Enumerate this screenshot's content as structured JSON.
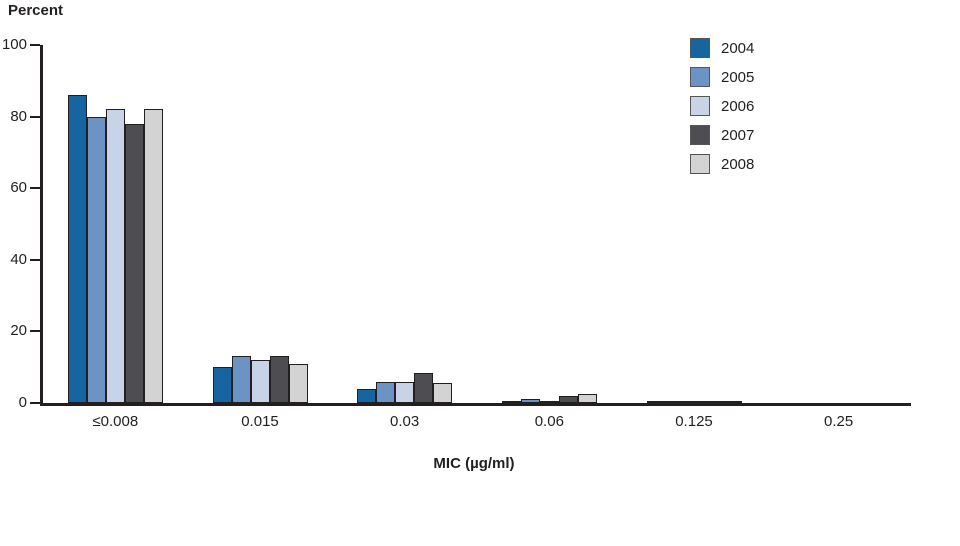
{
  "chart_data": {
    "type": "bar",
    "title": "Percent",
    "xlabel": "MIC (µg/ml)",
    "ylabel": "",
    "ylim": [
      0,
      100
    ],
    "yticks": [
      0,
      20,
      40,
      60,
      80,
      100
    ],
    "grid": false,
    "legend_position": "top-right",
    "categories": [
      "≤0.008",
      "0.015",
      "0.03",
      "0.06",
      "0.125",
      "0.25"
    ],
    "series": [
      {
        "name": "2004",
        "color": "#1665a0",
        "values": [
          86,
          10,
          4,
          0.5,
          0.1,
          0
        ]
      },
      {
        "name": "2005",
        "color": "#6d92c4",
        "values": [
          80,
          13,
          6,
          1,
          0.2,
          0
        ]
      },
      {
        "name": "2006",
        "color": "#c8d3e7",
        "values": [
          82,
          12,
          6,
          0.5,
          0.1,
          0
        ]
      },
      {
        "name": "2007",
        "color": "#4d4d52",
        "values": [
          78,
          13,
          8.5,
          2,
          0.3,
          0
        ]
      },
      {
        "name": "2008",
        "color": "#d3d3d3",
        "values": [
          82,
          11,
          5.5,
          2.5,
          0.2,
          0
        ]
      }
    ],
    "axis_color": "#231f20"
  }
}
